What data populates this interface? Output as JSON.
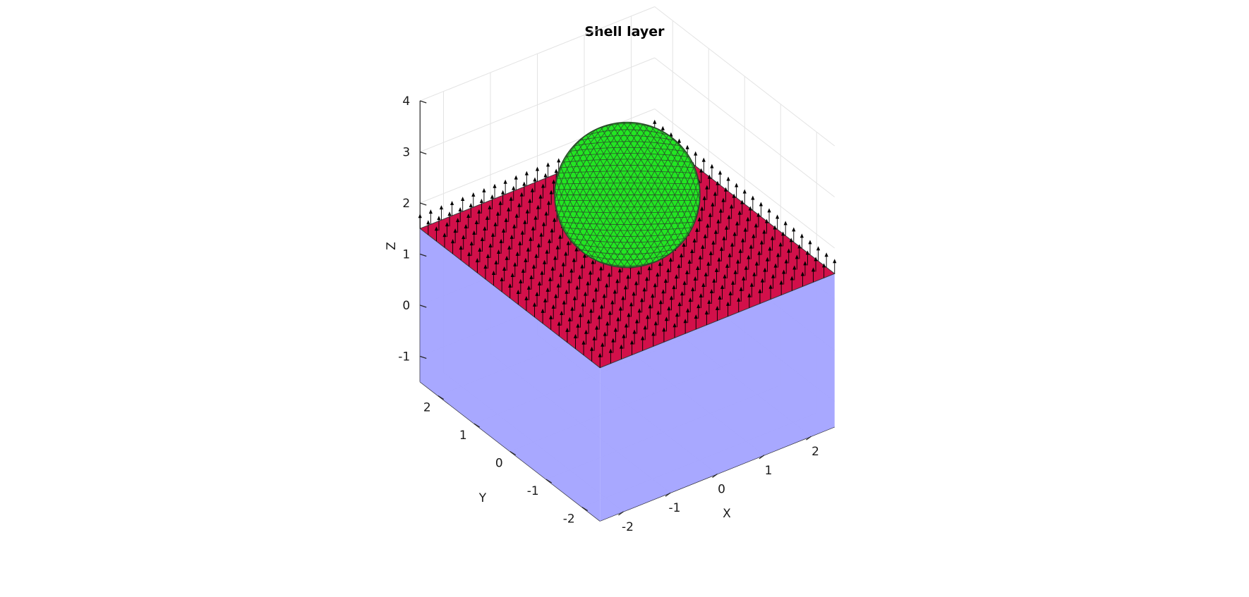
{
  "figure": {
    "title": "Shell layer",
    "axes": {
      "x": {
        "label": "X",
        "ticks": [
          "-2",
          "-1",
          "0",
          "1",
          "2"
        ]
      },
      "y": {
        "label": "Y",
        "ticks": [
          "-2",
          "-1",
          "0",
          "1",
          "2"
        ]
      },
      "z": {
        "label": "Z",
        "ticks": [
          "-1",
          "0",
          "1",
          "2",
          "3",
          "4"
        ]
      }
    },
    "colors": {
      "shell_surface": "#d2104a",
      "sphere": "#22e622",
      "sphere_mesh": "#2b4a2b",
      "volume": "#a3a3ff",
      "normals": "#000000",
      "grid": "#e3e3e3",
      "axis": "#262626"
    }
  },
  "chart_data": {
    "type": "3d-scene",
    "title": "Shell layer",
    "xlabel": "X",
    "ylabel": "Y",
    "zlabel": "Z",
    "xlim": [
      -2.5,
      2.5
    ],
    "ylim": [
      -2.5,
      2.5
    ],
    "zlim": [
      -1.5,
      4
    ],
    "grid": true,
    "objects": [
      {
        "kind": "box",
        "x": [
          -2.5,
          2.5
        ],
        "y": [
          -2.5,
          2.5
        ],
        "z": [
          -1.5,
          1.5
        ]
      },
      {
        "kind": "plane",
        "z": 1.5,
        "x": [
          -2.5,
          2.5
        ],
        "y": [
          -2.5,
          2.5
        ],
        "normal_arrows": true
      },
      {
        "kind": "sphere",
        "center": [
          0,
          0,
          2.6
        ],
        "radius": 1.25,
        "mesh": "triangulated"
      }
    ]
  }
}
